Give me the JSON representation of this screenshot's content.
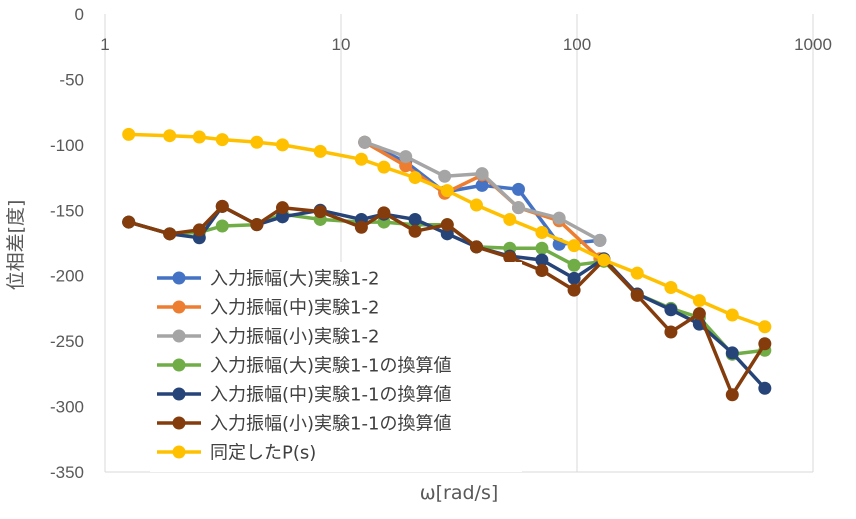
{
  "chart_data": {
    "type": "line",
    "title": "",
    "xlabel": "ω[rad/s]",
    "ylabel": "位相差[度]",
    "xscale": "log",
    "xlim": [
      1,
      1000
    ],
    "ylim": [
      -350,
      0
    ],
    "xticks": [
      1,
      10,
      100,
      1000
    ],
    "xtick_labels": [
      "1",
      "10",
      "100",
      "1000"
    ],
    "yticks": [
      0,
      -50,
      -100,
      -150,
      -200,
      -250,
      -300,
      -350
    ],
    "ytick_labels": [
      "0",
      "-50",
      "-100",
      "-150",
      "-200",
      "-250",
      "-300",
      "-350"
    ],
    "grid": "vertical",
    "legend_position": "bottom-left",
    "series": [
      {
        "name": "入力振幅(大)実験1-2",
        "color": "#4472C4",
        "x": [
          12.6,
          18.8,
          27.5,
          39.6,
          56.5,
          84.0,
          125.0
        ],
        "y": [
          -98,
          -113,
          -136,
          -131,
          -134,
          -176,
          -173
        ]
      },
      {
        "name": "入力振幅(中)実験1-2",
        "color": "#ED7D31",
        "x": [
          12.6,
          18.8,
          27.5,
          39.6,
          56.5,
          84.0,
          125.0
        ],
        "y": [
          -98,
          -116,
          -137,
          -123,
          -148,
          -158,
          -187
        ]
      },
      {
        "name": "入力振幅(小)実験1-2",
        "color": "#A5A5A5",
        "x": [
          12.6,
          18.8,
          27.5,
          39.6,
          56.5,
          84.0,
          125.0
        ],
        "y": [
          -98,
          -109,
          -124,
          -122,
          -148,
          -156,
          -173
        ]
      },
      {
        "name": "入力振幅(大)実験1-1の換算値",
        "color": "#70AD47",
        "x": [
          1.26,
          1.88,
          2.51,
          3.14,
          4.4,
          5.65,
          8.17,
          12.2,
          15.2,
          20.6,
          28.2,
          37.5,
          51.9,
          71.0,
          97.2,
          130.0,
          180.0,
          250.0,
          330.0,
          455.0,
          625.0
        ],
        "y": [
          -159,
          -168,
          -167,
          -162,
          -161,
          -153,
          -157,
          -159,
          -159,
          -161,
          -161,
          -178,
          -179,
          -179,
          -192,
          -189,
          -214,
          -225,
          -232,
          -260,
          -257
        ]
      },
      {
        "name": "入力振幅(中)実験1-1の換算値",
        "color": "#264478",
        "x": [
          1.26,
          1.88,
          2.51,
          3.14,
          4.4,
          5.65,
          8.17,
          12.2,
          15.2,
          20.6,
          28.2,
          37.5,
          51.9,
          71.0,
          97.2,
          130.0,
          180.0,
          250.0,
          330.0,
          455.0,
          625.0
        ],
        "y": [
          -159,
          -168,
          -171,
          -147,
          -161,
          -155,
          -150,
          -157,
          -153,
          -157,
          -168,
          -178,
          -185,
          -188,
          -202,
          -187,
          -214,
          -226,
          -237,
          -259,
          -286
        ]
      },
      {
        "name": "入力振幅(小)実験1-1の換算値",
        "color": "#843C0C",
        "x": [
          1.26,
          1.88,
          2.51,
          3.14,
          4.4,
          5.65,
          8.17,
          12.2,
          15.2,
          20.6,
          28.2,
          37.5,
          51.9,
          71.0,
          97.2,
          130.0,
          180.0,
          250.0,
          330.0,
          455.0,
          625.0
        ],
        "y": [
          -159,
          -168,
          -165,
          -147,
          -161,
          -148,
          -151,
          -163,
          -152,
          -166,
          -161,
          -178,
          -186,
          -196,
          -211,
          -188,
          -215,
          -243,
          -229,
          -291,
          -252
        ]
      },
      {
        "name": "同定したP(s)",
        "color": "#FFC000",
        "x": [
          1.26,
          1.88,
          2.51,
          3.14,
          4.4,
          5.65,
          8.17,
          12.2,
          15.2,
          20.6,
          28.2,
          37.5,
          51.9,
          71.0,
          97.2,
          130.0,
          180.0,
          250.0,
          330.0,
          455.0,
          625.0
        ],
        "y": [
          -92,
          -93,
          -94,
          -96,
          -98,
          -100,
          -105,
          -111,
          -117,
          -125,
          -135,
          -146,
          -157,
          -167,
          -177,
          -188,
          -198,
          -209,
          -219,
          -230,
          -239
        ]
      }
    ]
  }
}
